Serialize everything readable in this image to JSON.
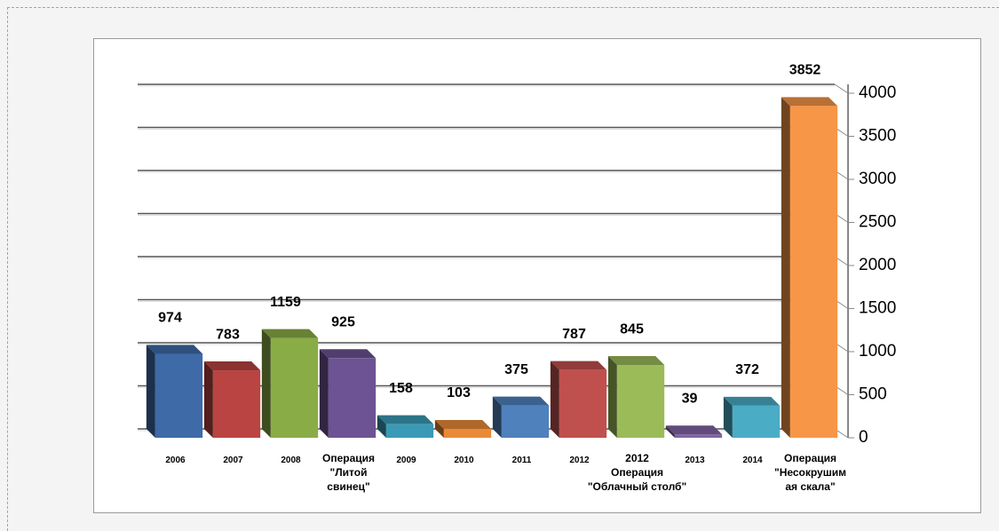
{
  "chart_data": {
    "type": "bar",
    "categories": [
      "2006",
      "2007",
      "2008",
      "Операция\n\"Литой\nсвинец\"",
      "2009",
      "2010",
      "2011",
      "2012",
      "2012\nОперация\n\"Облачный столб\"",
      "2013",
      "2014",
      "Операция\n\"Несокрушим\nая скала\""
    ],
    "values": [
      974,
      783,
      1159,
      925,
      158,
      103,
      375,
      787,
      845,
      39,
      372,
      3852
    ],
    "colors": [
      "#3e6aa8",
      "#b94441",
      "#8aac46",
      "#6d5393",
      "#3a9ab5",
      "#e98a36",
      "#4f81bd",
      "#c0504d",
      "#9bbb59",
      "#8064a2",
      "#4bacc6",
      "#f79646"
    ],
    "ylim": [
      0,
      4000
    ],
    "yticks": [
      0,
      500,
      1000,
      1500,
      2000,
      2500,
      3000,
      3500,
      4000
    ],
    "grid": true,
    "y_axis_side": "right"
  }
}
